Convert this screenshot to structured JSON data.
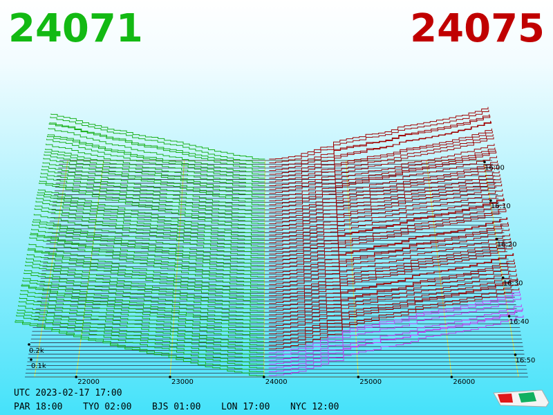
{
  "header": {
    "bid": "24071",
    "ask": "24075"
  },
  "price_labels": [
    "22000",
    "23000",
    "24000",
    "25000",
    "26000"
  ],
  "time_labels": [
    "16:00",
    "16:10",
    "16:20",
    "16:30",
    "16:40",
    "16:50"
  ],
  "volume_labels": [
    "0.2k",
    "0.1k"
  ],
  "footer": {
    "utc": "UTC 2023-02-17 17:00",
    "clocks": [
      "PAR 18:00",
      "TYO 02:00",
      "BJS 01:00",
      "LON 17:00",
      "NYC 12:00"
    ]
  }
}
